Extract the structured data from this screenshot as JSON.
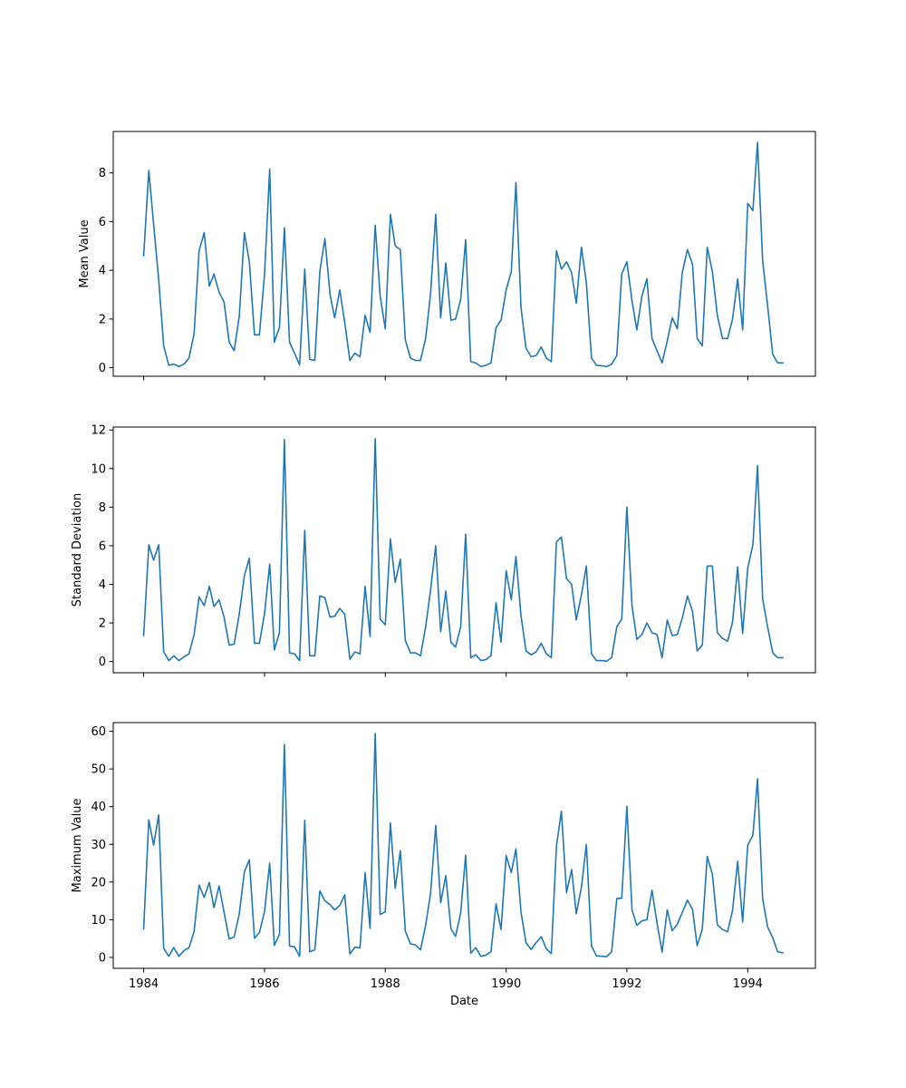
{
  "chart_data": [
    {
      "type": "line",
      "ylabel": "Mean Value",
      "xlabel": "",
      "xlim": [
        "1983-07-01",
        "1995-02-14"
      ],
      "ylim": [
        -0.35,
        9.7
      ],
      "yticks": [
        0,
        2,
        4,
        6,
        8
      ],
      "xticks": [
        "1984-01-01",
        "1986-01-01",
        "1988-01-01",
        "1990-01-01",
        "1992-01-01",
        "1994-01-01"
      ],
      "show_xtick_labels": false,
      "color": "#1f77b4",
      "series": [
        {
          "x": [
            "1984-01",
            "1984-02",
            "1984-03",
            "1984-04",
            "1984-05",
            "1984-06",
            "1984-07",
            "1984-08",
            "1984-09",
            "1984-10",
            "1984-11",
            "1984-12",
            "1985-01",
            "1985-02",
            "1985-03",
            "1985-04",
            "1985-05",
            "1985-06",
            "1985-07",
            "1985-08",
            "1985-09",
            "1985-10",
            "1985-11",
            "1985-12",
            "1986-01",
            "1986-02",
            "1986-03",
            "1986-04",
            "1986-05",
            "1986-06",
            "1986-07",
            "1986-08",
            "1986-09",
            "1986-10",
            "1986-11",
            "1986-12",
            "1987-01",
            "1987-02",
            "1987-03",
            "1987-04",
            "1987-05",
            "1987-06",
            "1987-07",
            "1987-08",
            "1987-09",
            "1987-10",
            "1987-11",
            "1987-12",
            "1988-01",
            "1988-02",
            "1988-03",
            "1988-04",
            "1988-05",
            "1988-06",
            "1988-07",
            "1988-08",
            "1988-09",
            "1988-10",
            "1988-11",
            "1988-12",
            "1989-01",
            "1989-02",
            "1989-03",
            "1989-04",
            "1989-05",
            "1989-06",
            "1989-07",
            "1989-08",
            "1989-09",
            "1989-10",
            "1989-11",
            "1989-12",
            "1990-01",
            "1990-02",
            "1990-03",
            "1990-04",
            "1990-05",
            "1990-06",
            "1990-07",
            "1990-08",
            "1990-09",
            "1990-10",
            "1990-11",
            "1990-12",
            "1991-01",
            "1991-02",
            "1991-03",
            "1991-04",
            "1991-05",
            "1991-06",
            "1991-07",
            "1991-08",
            "1991-09",
            "1991-10",
            "1991-11",
            "1991-12",
            "1992-01",
            "1992-02",
            "1992-03",
            "1992-04",
            "1992-05",
            "1992-06",
            "1992-07",
            "1992-08",
            "1992-09",
            "1992-10",
            "1992-11",
            "1992-12",
            "1993-01",
            "1993-02",
            "1993-03",
            "1993-04",
            "1993-05",
            "1993-06",
            "1993-07",
            "1993-08",
            "1993-09",
            "1993-10",
            "1993-11",
            "1993-12",
            "1994-01",
            "1994-02",
            "1994-03",
            "1994-04",
            "1994-05",
            "1994-06",
            "1994-07",
            "1994-08"
          ],
          "y": [
            4.6,
            8.1,
            5.9,
            3.6,
            0.9,
            0.1,
            0.15,
            0.05,
            0.15,
            0.4,
            1.4,
            4.8,
            5.55,
            3.35,
            3.85,
            3.1,
            2.7,
            1.05,
            0.7,
            2.1,
            5.55,
            4.35,
            1.35,
            1.35,
            3.85,
            8.15,
            1.05,
            1.65,
            5.75,
            1.05,
            0.6,
            0.12,
            4.05,
            0.35,
            0.3,
            3.95,
            5.3,
            3.0,
            2.05,
            3.2,
            1.85,
            0.3,
            0.6,
            0.45,
            2.15,
            1.45,
            5.85,
            2.95,
            1.6,
            6.3,
            5.0,
            4.85,
            1.15,
            0.4,
            0.3,
            0.3,
            1.2,
            3.05,
            6.3,
            2.05,
            4.3,
            1.95,
            2.0,
            2.8,
            5.25,
            0.25,
            0.2,
            0.05,
            0.1,
            0.2,
            1.65,
            1.95,
            3.2,
            3.95,
            7.6,
            2.45,
            0.8,
            0.45,
            0.5,
            0.85,
            0.4,
            0.25,
            4.8,
            4.05,
            4.35,
            3.9,
            2.65,
            4.95,
            3.5,
            0.4,
            0.1,
            0.08,
            0.05,
            0.15,
            0.5,
            3.85,
            4.35,
            2.75,
            1.55,
            2.95,
            3.65,
            1.2,
            0.7,
            0.2,
            1.1,
            2.05,
            1.6,
            3.9,
            4.85,
            4.25,
            1.2,
            0.9,
            4.95,
            3.95,
            2.15,
            1.2,
            1.2,
            2.0,
            3.65,
            1.55,
            6.75,
            6.45,
            9.25,
            4.4,
            2.55,
            0.55,
            0.2,
            0.2
          ]
        }
      ]
    },
    {
      "type": "line",
      "ylabel": "Standard Deviation",
      "xlabel": "",
      "xlim": [
        "1983-07-01",
        "1995-02-14"
      ],
      "ylim": [
        -0.58,
        12.15
      ],
      "yticks": [
        0,
        2,
        4,
        6,
        8,
        10,
        12
      ],
      "xticks": [
        "1984-01-01",
        "1986-01-01",
        "1988-01-01",
        "1990-01-01",
        "1992-01-01",
        "1994-01-01"
      ],
      "show_xtick_labels": false,
      "color": "#1f77b4",
      "series": [
        {
          "x": [
            "1984-01",
            "1984-02",
            "1984-03",
            "1984-04",
            "1984-05",
            "1984-06",
            "1984-07",
            "1984-08",
            "1984-09",
            "1984-10",
            "1984-11",
            "1984-12",
            "1985-01",
            "1985-02",
            "1985-03",
            "1985-04",
            "1985-05",
            "1985-06",
            "1985-07",
            "1985-08",
            "1985-09",
            "1985-10",
            "1985-11",
            "1985-12",
            "1986-01",
            "1986-02",
            "1986-03",
            "1986-04",
            "1986-05",
            "1986-06",
            "1986-07",
            "1986-08",
            "1986-09",
            "1986-10",
            "1986-11",
            "1986-12",
            "1987-01",
            "1987-02",
            "1987-03",
            "1987-04",
            "1987-05",
            "1987-06",
            "1987-07",
            "1987-08",
            "1987-09",
            "1987-10",
            "1987-11",
            "1987-12",
            "1988-01",
            "1988-02",
            "1988-03",
            "1988-04",
            "1988-05",
            "1988-06",
            "1988-07",
            "1988-08",
            "1988-09",
            "1988-10",
            "1988-11",
            "1988-12",
            "1989-01",
            "1989-02",
            "1989-03",
            "1989-04",
            "1989-05",
            "1989-06",
            "1989-07",
            "1989-08",
            "1989-09",
            "1989-10",
            "1989-11",
            "1989-12",
            "1990-01",
            "1990-02",
            "1990-03",
            "1990-04",
            "1990-05",
            "1990-06",
            "1990-07",
            "1990-08",
            "1990-09",
            "1990-10",
            "1990-11",
            "1990-12",
            "1991-01",
            "1991-02",
            "1991-03",
            "1991-04",
            "1991-05",
            "1991-06",
            "1991-07",
            "1991-08",
            "1991-09",
            "1991-10",
            "1991-11",
            "1991-12",
            "1992-01",
            "1992-02",
            "1992-03",
            "1992-04",
            "1992-05",
            "1992-06",
            "1992-07",
            "1992-08",
            "1992-09",
            "1992-10",
            "1992-11",
            "1992-12",
            "1993-01",
            "1993-02",
            "1993-03",
            "1993-04",
            "1993-05",
            "1993-06",
            "1993-07",
            "1993-08",
            "1993-09",
            "1993-10",
            "1993-11",
            "1993-12",
            "1994-01",
            "1994-02",
            "1994-03",
            "1994-04",
            "1994-05",
            "1994-06",
            "1994-07",
            "1994-08"
          ],
          "y": [
            1.35,
            6.05,
            5.25,
            6.05,
            0.5,
            0.05,
            0.3,
            0.05,
            0.25,
            0.4,
            1.4,
            3.35,
            2.9,
            3.9,
            2.85,
            3.2,
            2.3,
            0.85,
            0.9,
            2.45,
            4.45,
            5.35,
            0.95,
            0.95,
            2.5,
            5.05,
            0.6,
            1.5,
            11.5,
            0.45,
            0.4,
            0.05,
            6.8,
            0.3,
            0.3,
            3.4,
            3.3,
            2.3,
            2.35,
            2.75,
            2.45,
            0.12,
            0.5,
            0.4,
            3.9,
            1.3,
            11.55,
            2.2,
            1.9,
            6.35,
            4.1,
            5.3,
            1.1,
            0.45,
            0.45,
            0.3,
            1.8,
            3.7,
            6.0,
            1.55,
            3.65,
            1.0,
            0.75,
            1.8,
            6.6,
            0.2,
            0.35,
            0.05,
            0.1,
            0.3,
            3.05,
            1.0,
            4.7,
            3.2,
            5.45,
            2.35,
            0.55,
            0.35,
            0.5,
            0.95,
            0.4,
            0.2,
            6.2,
            6.45,
            4.3,
            4.0,
            2.15,
            3.45,
            4.95,
            0.4,
            0.05,
            0.05,
            0.02,
            0.2,
            1.8,
            2.2,
            8.0,
            2.9,
            1.15,
            1.4,
            2.0,
            1.5,
            1.4,
            0.2,
            2.15,
            1.35,
            1.4,
            2.25,
            3.4,
            2.6,
            0.55,
            0.85,
            4.95,
            4.95,
            1.5,
            1.2,
            1.05,
            2.05,
            4.9,
            1.45,
            4.85,
            6.05,
            10.15,
            3.25,
            1.8,
            0.45,
            0.2,
            0.2
          ]
        }
      ]
    },
    {
      "type": "line",
      "ylabel": "Maximum Value",
      "xlabel": "Date",
      "xlim": [
        "1983-07-01",
        "1995-02-14"
      ],
      "ylim": [
        -2.9,
        62.3
      ],
      "yticks": [
        0,
        10,
        20,
        30,
        40,
        50,
        60
      ],
      "xticks": [
        "1984-01-01",
        "1986-01-01",
        "1988-01-01",
        "1990-01-01",
        "1992-01-01",
        "1994-01-01"
      ],
      "xticklabels": [
        "1984",
        "1986",
        "1988",
        "1990",
        "1992",
        "1994"
      ],
      "show_xtick_labels": true,
      "color": "#1f77b4",
      "series": [
        {
          "x": [
            "1984-01",
            "1984-02",
            "1984-03",
            "1984-04",
            "1984-05",
            "1984-06",
            "1984-07",
            "1984-08",
            "1984-09",
            "1984-10",
            "1984-11",
            "1984-12",
            "1985-01",
            "1985-02",
            "1985-03",
            "1985-04",
            "1985-05",
            "1985-06",
            "1985-07",
            "1985-08",
            "1985-09",
            "1985-10",
            "1985-11",
            "1985-12",
            "1986-01",
            "1986-02",
            "1986-03",
            "1986-04",
            "1986-05",
            "1986-06",
            "1986-07",
            "1986-08",
            "1986-09",
            "1986-10",
            "1986-11",
            "1986-12",
            "1987-01",
            "1987-02",
            "1987-03",
            "1987-04",
            "1987-05",
            "1987-06",
            "1987-07",
            "1987-08",
            "1987-09",
            "1987-10",
            "1987-11",
            "1987-12",
            "1988-01",
            "1988-02",
            "1988-03",
            "1988-04",
            "1988-05",
            "1988-06",
            "1988-07",
            "1988-08",
            "1988-09",
            "1988-10",
            "1988-11",
            "1988-12",
            "1989-01",
            "1989-02",
            "1989-03",
            "1989-04",
            "1989-05",
            "1989-06",
            "1989-07",
            "1989-08",
            "1989-09",
            "1989-10",
            "1989-11",
            "1989-12",
            "1990-01",
            "1990-02",
            "1990-03",
            "1990-04",
            "1990-05",
            "1990-06",
            "1990-07",
            "1990-08",
            "1990-09",
            "1990-10",
            "1990-11",
            "1990-12",
            "1991-01",
            "1991-02",
            "1991-03",
            "1991-04",
            "1991-05",
            "1991-06",
            "1991-07",
            "1991-08",
            "1991-09",
            "1991-10",
            "1991-11",
            "1991-12",
            "1992-01",
            "1992-02",
            "1992-03",
            "1992-04",
            "1992-05",
            "1992-06",
            "1992-07",
            "1992-08",
            "1992-09",
            "1992-10",
            "1992-11",
            "1992-12",
            "1993-01",
            "1993-02",
            "1993-03",
            "1993-04",
            "1993-05",
            "1993-06",
            "1993-07",
            "1993-08",
            "1993-09",
            "1993-10",
            "1993-11",
            "1993-12",
            "1994-01",
            "1994-02",
            "1994-03",
            "1994-04",
            "1994-05",
            "1994-06",
            "1994-07",
            "1994-08"
          ],
          "y": [
            7.6,
            36.5,
            29.8,
            37.8,
            2.4,
            0.3,
            2.6,
            0.3,
            1.8,
            2.6,
            6.9,
            19.2,
            15.9,
            19.9,
            13.2,
            19.0,
            12.0,
            4.9,
            5.4,
            11.5,
            22.7,
            25.9,
            5.1,
            6.6,
            12.2,
            25.0,
            3.2,
            6.1,
            56.5,
            3.0,
            2.8,
            0.3,
            36.4,
            1.5,
            2.0,
            17.6,
            15.0,
            14.0,
            12.6,
            13.8,
            16.6,
            0.9,
            2.7,
            2.5,
            22.5,
            7.7,
            59.4,
            11.4,
            12.1,
            35.7,
            18.3,
            28.3,
            7.0,
            3.6,
            3.3,
            2.0,
            8.5,
            17.0,
            35.0,
            14.5,
            21.7,
            7.6,
            5.6,
            11.8,
            27.1,
            1.1,
            2.6,
            0.3,
            0.6,
            1.5,
            14.2,
            7.4,
            27.0,
            22.5,
            28.8,
            11.9,
            3.9,
            2.1,
            3.9,
            5.5,
            2.3,
            1.0,
            29.5,
            38.8,
            17.2,
            23.3,
            11.6,
            18.6,
            30.0,
            3.0,
            0.4,
            0.3,
            0.2,
            1.5,
            15.6,
            15.7,
            40.1,
            12.6,
            8.5,
            9.7,
            10.0,
            17.8,
            9.2,
            1.4,
            12.6,
            7.1,
            8.8,
            11.9,
            15.2,
            12.7,
            3.1,
            7.4,
            26.8,
            22.0,
            8.7,
            7.4,
            6.8,
            12.5,
            25.5,
            9.4,
            29.8,
            32.4,
            47.4,
            15.6,
            8.1,
            5.2,
            1.5,
            1.2
          ]
        }
      ]
    }
  ]
}
